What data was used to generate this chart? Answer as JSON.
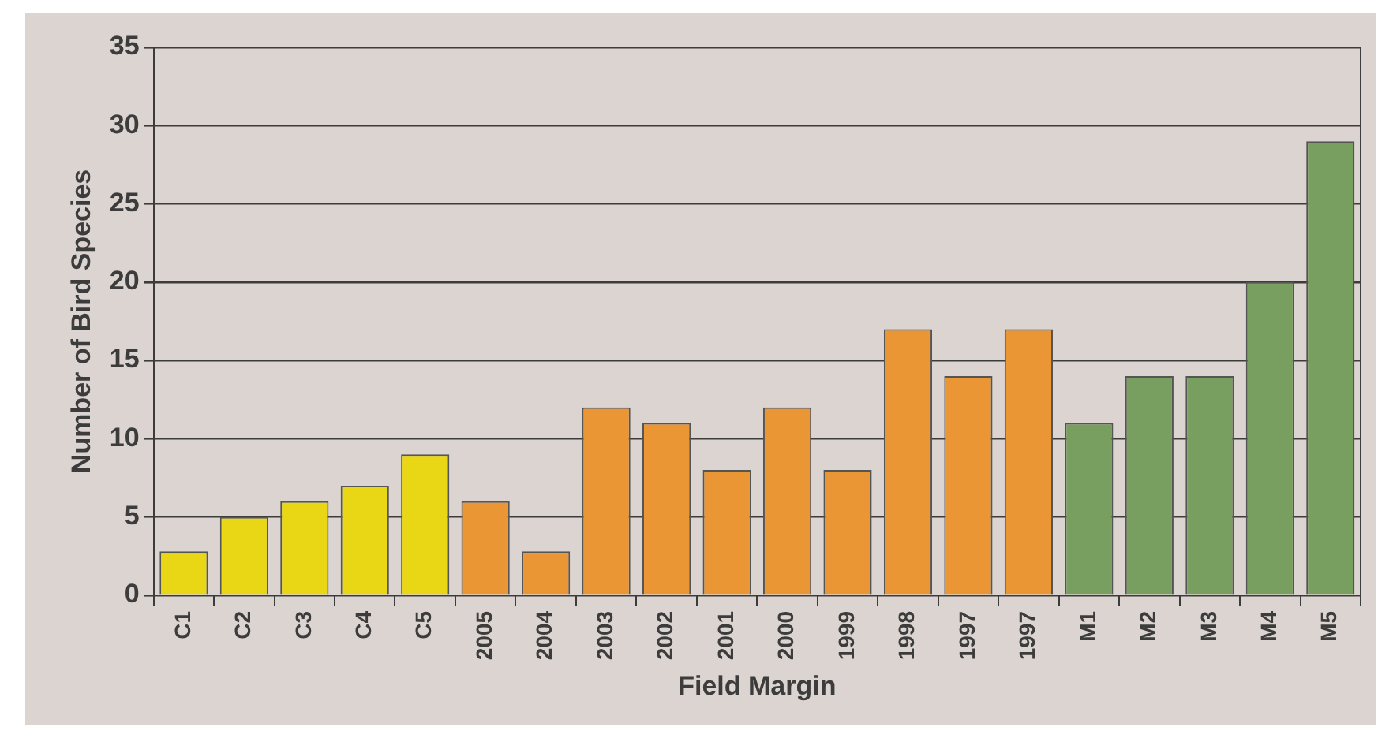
{
  "chart_data": {
    "type": "bar",
    "xlabel": "Field Margin",
    "ylabel": "Number of Bird Species",
    "categories": [
      "C1",
      "C2",
      "C3",
      "C4",
      "C5",
      "2005",
      "2004",
      "2003",
      "2002",
      "2001",
      "2000",
      "1999",
      "1998",
      "1997",
      "1997",
      "M1",
      "M2",
      "M3",
      "M4",
      "M5"
    ],
    "values": [
      2.8,
      5,
      6,
      7,
      9,
      6,
      2.8,
      12,
      11,
      8,
      12,
      8,
      17,
      14,
      17,
      11,
      14,
      14,
      20,
      29
    ],
    "colors": [
      "#e9d614",
      "#e9d614",
      "#e9d614",
      "#e9d614",
      "#e9d614",
      "#ea9634",
      "#ea9634",
      "#ea9634",
      "#ea9634",
      "#ea9634",
      "#ea9634",
      "#ea9634",
      "#ea9634",
      "#ea9634",
      "#ea9634",
      "#789f60",
      "#789f60",
      "#789f60",
      "#789f60",
      "#789f60"
    ],
    "ylim": [
      0,
      35
    ],
    "yticks": [
      0,
      5,
      10,
      15,
      20,
      25,
      30,
      35
    ],
    "grid": "y",
    "legend": false
  }
}
